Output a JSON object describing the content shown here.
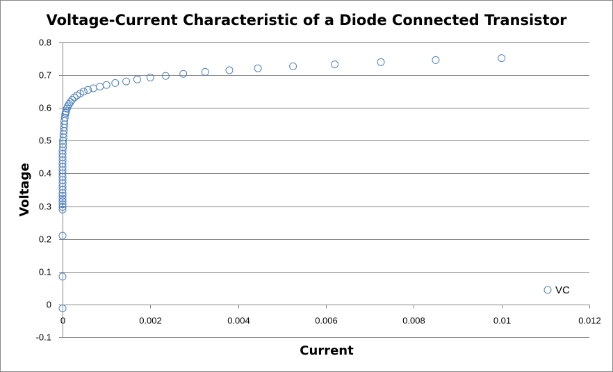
{
  "chart_data": {
    "type": "scatter",
    "title": "Voltage-Current Characteristic of a Diode Connected Transistor",
    "xlabel": "Current",
    "ylabel": "Voltage",
    "xlim": [
      0,
      0.012
    ],
    "ylim": [
      -0.1,
      0.8
    ],
    "x_ticks": [
      0,
      0.002,
      0.004,
      0.006,
      0.008,
      0.01,
      0.012
    ],
    "x_tick_labels": [
      "0",
      "0.002",
      "0.004",
      "0.006",
      "0.008",
      "0.01",
      "0.012"
    ],
    "y_ticks": [
      -0.1,
      0,
      0.1,
      0.2,
      0.3,
      0.4,
      0.5,
      0.6,
      0.7,
      0.8
    ],
    "y_tick_labels": [
      "-0.1",
      "0",
      "0.1",
      "0.2",
      "0.3",
      "0.4",
      "0.5",
      "0.6",
      "0.7",
      "0.8"
    ],
    "grid": "horizontal",
    "legend_position": "bottom-right",
    "series": [
      {
        "name": "VC",
        "color": "#4f81bd",
        "marker": "open-circle",
        "x": [
          0,
          0,
          0,
          0,
          0,
          0,
          0,
          0,
          0,
          0,
          0,
          0,
          0,
          0,
          0,
          0,
          0,
          0,
          0,
          0,
          0,
          0,
          0,
          1e-05,
          1e-05,
          1e-05,
          2e-05,
          2e-05,
          3e-05,
          3e-05,
          4e-05,
          4e-05,
          5e-05,
          6e-05,
          7e-05,
          8e-05,
          0.0001,
          0.00012,
          0.00015,
          0.00018,
          0.00022,
          0.00027,
          0.00033,
          0.0004,
          0.00048,
          0.00058,
          0.0007,
          0.00085,
          0.001,
          0.0012,
          0.00145,
          0.0017,
          0.002,
          0.00235,
          0.00275,
          0.00325,
          0.0038,
          0.00445,
          0.00525,
          0.0062,
          0.00725,
          0.0085,
          0.01
        ],
        "y": [
          -0.012,
          0.085,
          0.21,
          0.29,
          0.298,
          0.306,
          0.315,
          0.323,
          0.332,
          0.34,
          0.35,
          0.36,
          0.37,
          0.38,
          0.39,
          0.4,
          0.41,
          0.42,
          0.43,
          0.44,
          0.45,
          0.46,
          0.47,
          0.48,
          0.49,
          0.5,
          0.51,
          0.52,
          0.53,
          0.54,
          0.55,
          0.56,
          0.57,
          0.58,
          0.585,
          0.59,
          0.598,
          0.605,
          0.612,
          0.618,
          0.625,
          0.632,
          0.638,
          0.644,
          0.65,
          0.655,
          0.66,
          0.665,
          0.67,
          0.676,
          0.681,
          0.687,
          0.693,
          0.698,
          0.704,
          0.71,
          0.715,
          0.721,
          0.727,
          0.733,
          0.74,
          0.746,
          0.752
        ]
      }
    ]
  }
}
